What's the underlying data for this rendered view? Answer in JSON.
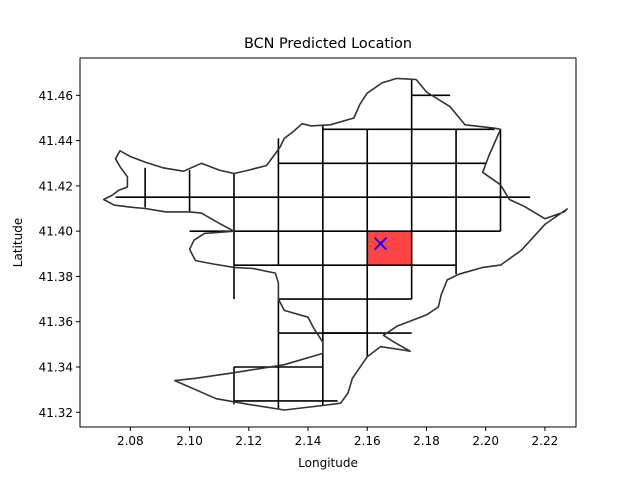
{
  "chart_data": {
    "type": "scatter",
    "title": "BCN Predicted Location",
    "xlabel": "Longitude",
    "ylabel": "Latitude",
    "xlim": [
      2.063,
      2.2305
    ],
    "ylim": [
      41.3135,
      41.4765
    ],
    "x_ticks": [
      2.08,
      2.1,
      2.12,
      2.14,
      2.16,
      2.18,
      2.2,
      2.22
    ],
    "x_tick_labels": [
      "2.08",
      "2.10",
      "2.12",
      "2.14",
      "2.16",
      "2.18",
      "2.20",
      "2.22"
    ],
    "y_ticks": [
      41.32,
      41.34,
      41.36,
      41.38,
      41.4,
      41.42,
      41.44,
      41.46
    ],
    "y_tick_labels": [
      "41.32",
      "41.34",
      "41.36",
      "41.38",
      "41.40",
      "41.42",
      "41.44",
      "41.46"
    ],
    "grid": false,
    "outline_color": "#333333",
    "highlight_color": "#ff4444",
    "marker_color": "#0000ff",
    "predicted_point": {
      "x": 2.1645,
      "y": 41.3945,
      "marker": "x"
    },
    "highlighted_cell": {
      "x0": 2.16,
      "x1": 2.175,
      "y0": 41.385,
      "y1": 41.4
    },
    "boundary": [
      [
        2.074,
        41.416
      ],
      [
        2.071,
        41.414
      ],
      [
        2.0745,
        41.4115
      ],
      [
        2.081,
        41.4105
      ],
      [
        2.085,
        41.41
      ],
      [
        2.092,
        41.4085
      ],
      [
        2.1,
        41.4085
      ],
      [
        2.104,
        41.408
      ],
      [
        2.11,
        41.4035
      ],
      [
        2.115,
        41.4
      ],
      [
        2.105,
        41.399
      ],
      [
        2.1015,
        41.396
      ],
      [
        2.1,
        41.392
      ],
      [
        2.102,
        41.387
      ],
      [
        2.108,
        41.3855
      ],
      [
        2.115,
        41.384
      ],
      [
        2.1215,
        41.3835
      ],
      [
        2.129,
        41.3815
      ],
      [
        2.13,
        41.377
      ],
      [
        2.13,
        41.37
      ],
      [
        2.132,
        41.365
      ],
      [
        2.14,
        41.362
      ],
      [
        2.142,
        41.357
      ],
      [
        2.145,
        41.351
      ],
      [
        2.145,
        41.346
      ],
      [
        2.132,
        41.341
      ],
      [
        2.115,
        41.3375
      ],
      [
        2.102,
        41.335
      ],
      [
        2.095,
        41.334
      ],
      [
        2.109,
        41.326
      ],
      [
        2.12,
        41.3235
      ],
      [
        2.132,
        41.321
      ],
      [
        2.145,
        41.323
      ],
      [
        2.151,
        41.324
      ],
      [
        2.1535,
        41.3285
      ],
      [
        2.155,
        41.335
      ],
      [
        2.16,
        41.3445
      ],
      [
        2.1645,
        41.349
      ],
      [
        2.172,
        41.3475
      ],
      [
        2.1745,
        41.347
      ],
      [
        2.169,
        41.351
      ],
      [
        2.1655,
        41.354
      ],
      [
        2.17,
        41.358
      ],
      [
        2.18,
        41.363
      ],
      [
        2.184,
        41.3665
      ],
      [
        2.185,
        41.372
      ],
      [
        2.187,
        41.3785
      ],
      [
        2.191,
        41.381
      ],
      [
        2.199,
        41.384
      ],
      [
        2.205,
        41.385
      ],
      [
        2.212,
        41.3915
      ],
      [
        2.22,
        41.403
      ],
      [
        2.2275,
        41.4098
      ],
      [
        2.2265,
        41.4085
      ],
      [
        2.22,
        41.4055
      ],
      [
        2.213,
        41.411
      ],
      [
        2.208,
        41.414
      ],
      [
        2.205,
        41.4205
      ],
      [
        2.199,
        41.426
      ],
      [
        2.201,
        41.433
      ],
      [
        2.205,
        41.445
      ],
      [
        2.203,
        41.4455
      ],
      [
        2.193,
        41.447
      ],
      [
        2.188,
        41.455
      ],
      [
        2.18,
        41.4615
      ],
      [
        2.1765,
        41.467
      ],
      [
        2.17,
        41.4675
      ],
      [
        2.165,
        41.4655
      ],
      [
        2.16,
        41.461
      ],
      [
        2.1575,
        41.456
      ],
      [
        2.1555,
        41.45
      ],
      [
        2.1475,
        41.447
      ],
      [
        2.141,
        41.4465
      ],
      [
        2.138,
        41.4475
      ],
      [
        2.135,
        41.444
      ],
      [
        2.132,
        41.441
      ],
      [
        2.1305,
        41.437
      ],
      [
        2.126,
        41.429
      ],
      [
        2.12,
        41.427
      ],
      [
        2.115,
        41.4255
      ],
      [
        2.11,
        41.427
      ],
      [
        2.104,
        41.43
      ],
      [
        2.098,
        41.4265
      ],
      [
        2.091,
        41.428
      ],
      [
        2.085,
        41.4305
      ],
      [
        2.08,
        41.433
      ],
      [
        2.0765,
        41.4355
      ],
      [
        2.075,
        41.432
      ],
      [
        2.0765,
        41.4285
      ],
      [
        2.079,
        41.424
      ],
      [
        2.079,
        41.4195
      ],
      [
        2.076,
        41.418
      ],
      [
        2.074,
        41.416
      ]
    ],
    "grid_segments": [
      [
        [
          2.1,
          41.4
        ],
        [
          2.205,
          41.4
        ]
      ],
      [
        [
          2.115,
          41.385
        ],
        [
          2.19,
          41.385
        ]
      ],
      [
        [
          2.13,
          41.37
        ],
        [
          2.175,
          41.37
        ]
      ],
      [
        [
          2.13,
          41.355
        ],
        [
          2.16,
          41.355
        ]
      ],
      [
        [
          2.145,
          41.355
        ],
        [
          2.175,
          41.355
        ]
      ],
      [
        [
          2.115,
          41.34
        ],
        [
          2.145,
          41.34
        ]
      ],
      [
        [
          2.115,
          41.325
        ],
        [
          2.15,
          41.325
        ]
      ],
      [
        [
          2.075,
          41.415
        ],
        [
          2.215,
          41.415
        ]
      ],
      [
        [
          2.13,
          41.43
        ],
        [
          2.2,
          41.43
        ]
      ],
      [
        [
          2.145,
          41.445
        ],
        [
          2.203,
          41.445
        ]
      ],
      [
        [
          2.175,
          41.46
        ],
        [
          2.188,
          41.46
        ]
      ],
      [
        [
          2.085,
          41.4105
        ],
        [
          2.085,
          41.428
        ]
      ],
      [
        [
          2.1,
          41.4085
        ],
        [
          2.1,
          41.427
        ]
      ],
      [
        [
          2.115,
          41.384
        ],
        [
          2.115,
          41.4
        ]
      ],
      [
        [
          2.115,
          41.37
        ],
        [
          2.115,
          41.384
        ]
      ],
      [
        [
          2.115,
          41.3235
        ],
        [
          2.115,
          41.34
        ]
      ],
      [
        [
          2.115,
          41.4
        ],
        [
          2.115,
          41.4255
        ]
      ],
      [
        [
          2.13,
          41.3215
        ],
        [
          2.13,
          41.37
        ]
      ],
      [
        [
          2.13,
          41.385
        ],
        [
          2.13,
          41.441
        ]
      ],
      [
        [
          2.145,
          41.323
        ],
        [
          2.145,
          41.447
        ]
      ],
      [
        [
          2.16,
          41.3445
        ],
        [
          2.16,
          41.445
        ]
      ],
      [
        [
          2.175,
          41.37
        ],
        [
          2.175,
          41.467
        ]
      ],
      [
        [
          2.19,
          41.381
        ],
        [
          2.19,
          41.445
        ]
      ],
      [
        [
          2.205,
          41.4
        ],
        [
          2.205,
          41.445
        ]
      ]
    ]
  }
}
